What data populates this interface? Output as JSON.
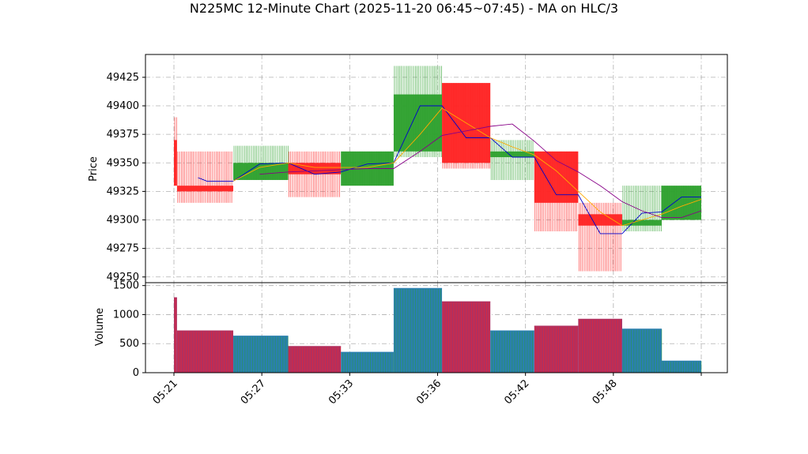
{
  "chart_data": {
    "type": "candlestick",
    "title": "N225MC 12-Minute Chart (2025-11-20 06:45~07:45) - MA on HLC/3",
    "price_panel": {
      "ylabel": "Price",
      "ylim": [
        49245,
        49445
      ],
      "yticks": [
        49250,
        49275,
        49300,
        49325,
        49350,
        49375,
        49400,
        49425
      ]
    },
    "volume_panel": {
      "ylabel": "Volume",
      "ylim": [
        0,
        1550
      ],
      "yticks": [
        0,
        500,
        1000,
        1500
      ]
    },
    "xlim": [
      0,
      12
    ],
    "xticks": [
      {
        "x": 0,
        "label": "05:21"
      },
      {
        "x": 2,
        "label": "05:27"
      },
      {
        "x": 4,
        "label": "05:33"
      },
      {
        "x": 6,
        "label": "05:36"
      },
      {
        "x": 8,
        "label": "05:42"
      },
      {
        "x": 10,
        "label": "05:48"
      },
      {
        "x": 12,
        "label": ""
      }
    ],
    "candles": [
      {
        "start": 0.0,
        "end": 0.07,
        "open": 49370,
        "high": 49390,
        "low": 49330,
        "close": 49330,
        "volume": 1290
      },
      {
        "start": 0.07,
        "end": 1.35,
        "open": 49330,
        "high": 49360,
        "low": 49315,
        "close": 49325,
        "volume": 720
      },
      {
        "start": 1.35,
        "end": 2.6,
        "open": 49335,
        "high": 49365,
        "low": 49335,
        "close": 49350,
        "volume": 630
      },
      {
        "start": 2.6,
        "end": 3.8,
        "open": 49350,
        "high": 49360,
        "low": 49320,
        "close": 49340,
        "volume": 450
      },
      {
        "start": 3.8,
        "end": 5.0,
        "open": 49330,
        "high": 49360,
        "low": 49330,
        "close": 49360,
        "volume": 350
      },
      {
        "start": 5.0,
        "end": 6.1,
        "open": 49360,
        "high": 49435,
        "low": 49355,
        "close": 49410,
        "volume": 1450
      },
      {
        "start": 6.1,
        "end": 7.2,
        "open": 49420,
        "high": 49420,
        "low": 49345,
        "close": 49350,
        "volume": 1220
      },
      {
        "start": 7.2,
        "end": 8.2,
        "open": 49355,
        "high": 49370,
        "low": 49335,
        "close": 49360,
        "volume": 720
      },
      {
        "start": 8.2,
        "end": 9.2,
        "open": 49360,
        "high": 49360,
        "low": 49290,
        "close": 49315,
        "volume": 800
      },
      {
        "start": 9.2,
        "end": 10.2,
        "open": 49305,
        "high": 49315,
        "low": 49255,
        "close": 49295,
        "volume": 920
      },
      {
        "start": 10.2,
        "end": 11.1,
        "open": 49295,
        "high": 49330,
        "low": 49290,
        "close": 49300,
        "volume": 750
      },
      {
        "start": 11.1,
        "end": 12.0,
        "open": 49300,
        "high": 49330,
        "low": 49300,
        "close": 49330,
        "volume": 200
      }
    ],
    "series": [
      {
        "color": "#0000cc",
        "x": [
          0.55,
          0.75,
          1.35,
          1.95,
          2.6,
          3.2,
          3.8,
          4.4,
          5.0,
          5.6,
          6.1,
          6.65,
          7.2,
          7.7,
          8.2,
          8.7,
          9.2,
          9.7,
          10.2,
          10.65,
          11.1,
          11.55,
          12.0
        ],
        "y": [
          49337,
          49334,
          49334,
          49349,
          49350,
          49340,
          49342,
          49349,
          49350,
          49400,
          49400,
          49372,
          49372,
          49355,
          49355,
          49322,
          49322,
          49288,
          49288,
          49306,
          49307,
          49320,
          49320
        ]
      },
      {
        "color": "#ffaa00",
        "x": [
          1.35,
          1.95,
          2.6,
          3.2,
          3.8,
          4.4,
          5.0,
          5.6,
          6.1,
          6.65,
          7.2,
          7.7,
          8.2,
          8.7,
          9.2,
          9.7,
          10.2,
          10.65,
          11.1,
          11.55,
          12.0
        ],
        "y": [
          49334,
          49346,
          49350,
          49346,
          49346,
          49346,
          49350,
          49375,
          49398,
          49385,
          49372,
          49364,
          49357,
          49343,
          49325,
          49307,
          49295,
          49300,
          49305,
          49312,
          49318
        ]
      },
      {
        "color": "#880088",
        "x": [
          1.95,
          2.6,
          3.2,
          3.8,
          4.4,
          5.0,
          5.6,
          6.1,
          6.65,
          7.2,
          7.7,
          8.2,
          8.7,
          9.2,
          9.7,
          10.2,
          10.65,
          11.1,
          11.55,
          12.0
        ],
        "y": [
          49340,
          49342,
          49343,
          49344,
          49345,
          49345,
          49360,
          49374,
          49378,
          49382,
          49384,
          49369,
          49352,
          49342,
          49330,
          49316,
          49308,
          49302,
          49302,
          49308
        ]
      }
    ],
    "colors": {
      "up": "#2ca02c",
      "down": "#ff2222",
      "volume_up": "#2a7fb0",
      "volume_down": "#b03060"
    },
    "grid": true
  }
}
